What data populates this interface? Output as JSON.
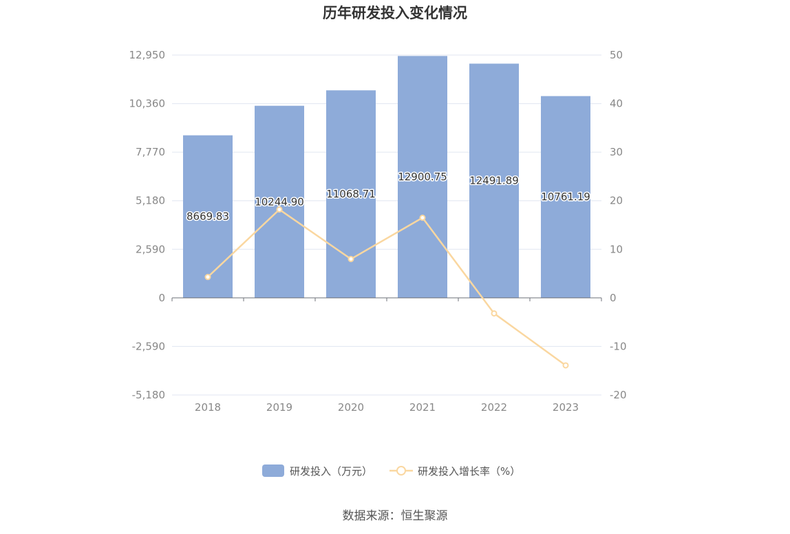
{
  "chart_data": {
    "type": "bar",
    "title": "历年研发投入变化情况",
    "categories": [
      "2018",
      "2019",
      "2020",
      "2021",
      "2022",
      "2023"
    ],
    "series": [
      {
        "name": "研发投入（万元）",
        "type": "bar",
        "axis": "left",
        "values": [
          8669.83,
          10244.9,
          11068.71,
          12900.75,
          12491.89,
          10761.19
        ],
        "labels": [
          "8669.83",
          "10244.90",
          "11068.71",
          "12900.75",
          "12491.89",
          "10761.19"
        ],
        "color": "#8eabd9"
      },
      {
        "name": "研发投入增长率（%）",
        "type": "line",
        "axis": "right",
        "values": [
          4.3,
          18.2,
          8.0,
          16.5,
          -3.2,
          -13.9
        ],
        "color": "#fad7a0"
      }
    ],
    "y_left": {
      "ylim": [
        -5180,
        12950
      ],
      "ticks": [
        12950,
        10360,
        7770,
        5180,
        2590,
        0,
        -2590,
        -5180
      ],
      "tick_labels": [
        "12,950",
        "10,360",
        "7,770",
        "5,180",
        "2,590",
        "0",
        "-2,590",
        "-5,180"
      ]
    },
    "y_right": {
      "ylim": [
        -20,
        50
      ],
      "ticks": [
        50,
        40,
        30,
        20,
        10,
        0,
        -10,
        -20
      ],
      "tick_labels": [
        "50",
        "40",
        "30",
        "20",
        "10",
        "0",
        "-10",
        "-20"
      ]
    },
    "grid": true,
    "legend_position": "bottom",
    "source": "数据来源：恒生聚源"
  }
}
